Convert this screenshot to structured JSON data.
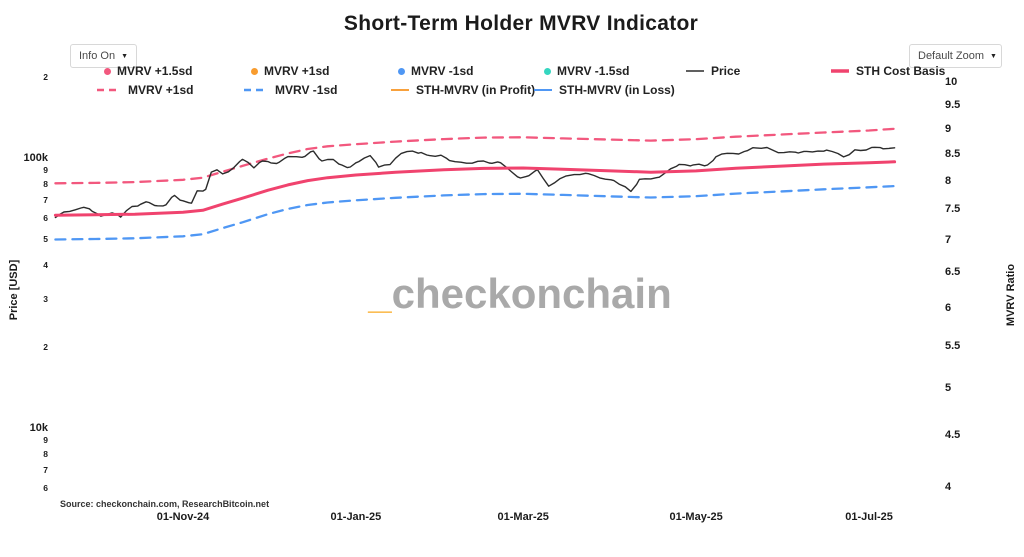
{
  "title": "Short-Term Holder MVRV Indicator",
  "controls": {
    "info_label": "Info On",
    "zoom_label": "Default Zoom"
  },
  "watermark": {
    "prefix": "_",
    "text": "checkonchain"
  },
  "source": "Source: checkonchain.com, ResearchBitcoin.net",
  "colors": {
    "pink": "#f0436e",
    "pink_dash": "#f2587e",
    "orange": "#f89c2f",
    "blue": "#4f97f4",
    "teal": "#35d6c0",
    "price_black": "#2c2c2c",
    "watermark_gray": "#a9a9a9",
    "watermark_orange": "#fbbd55"
  },
  "legend": {
    "items": [
      {
        "label": "MVRV +1.5sd",
        "swatch": "dot",
        "color": "#f2587e"
      },
      {
        "label": "MVRV +1sd",
        "swatch": "dot",
        "color": "#f89c2f"
      },
      {
        "label": "MVRV -1sd",
        "swatch": "dot",
        "color": "#4f97f4"
      },
      {
        "label": "MVRV -1.5sd",
        "swatch": "dot",
        "color": "#35d6c0"
      },
      {
        "label": "Price",
        "swatch": "line",
        "color": "#2c2c2c",
        "lw": 1.5
      },
      {
        "label": "STH Cost Basis",
        "swatch": "line",
        "color": "#f0436e",
        "lw": 3.5
      },
      {
        "label": "MVRV +1sd",
        "swatch": "dash",
        "color": "#f2587e",
        "lw": 2.5
      },
      {
        "label": "MVRV -1sd",
        "swatch": "dash",
        "color": "#4f97f4",
        "lw": 2.5
      },
      {
        "label": "STH-MVRV (in Profit)",
        "swatch": "line",
        "color": "#f8a13c",
        "lw": 2
      },
      {
        "label": "STH-MVRV (in Loss)",
        "swatch": "line",
        "color": "#4f97f4",
        "lw": 2
      }
    ]
  },
  "axes": {
    "left_title": "Price [USD]",
    "right_title": "MVRV Ratio",
    "left_ticks": [
      {
        "label": "2",
        "v": 200
      },
      {
        "label": "100k",
        "v": 100,
        "major": true
      },
      {
        "label": "9",
        "v": 90
      },
      {
        "label": "8",
        "v": 80
      },
      {
        "label": "7",
        "v": 70
      },
      {
        "label": "6",
        "v": 60
      },
      {
        "label": "5",
        "v": 50
      },
      {
        "label": "4",
        "v": 40
      },
      {
        "label": "3",
        "v": 30
      },
      {
        "label": "2",
        "v": 20
      },
      {
        "label": "10k",
        "v": 10,
        "major": true
      },
      {
        "label": "9",
        "v": 9
      },
      {
        "label": "8",
        "v": 8
      },
      {
        "label": "7",
        "v": 7
      },
      {
        "label": "6",
        "v": 6
      }
    ],
    "right_ticks": [
      {
        "label": "10",
        "v": 10
      },
      {
        "label": "9.5",
        "v": 9.5
      },
      {
        "label": "9",
        "v": 9
      },
      {
        "label": "8.5",
        "v": 8.5
      },
      {
        "label": "8",
        "v": 8
      },
      {
        "label": "7.5",
        "v": 7.5
      },
      {
        "label": "7",
        "v": 7
      },
      {
        "label": "6.5",
        "v": 6.5
      },
      {
        "label": "6",
        "v": 6
      },
      {
        "label": "5.5",
        "v": 5.5
      },
      {
        "label": "5",
        "v": 5
      },
      {
        "label": "4.5",
        "v": 4.5
      },
      {
        "label": "4",
        "v": 4
      }
    ],
    "x_ticks": [
      {
        "label": "01-Nov-24",
        "date": "2024-11-01"
      },
      {
        "label": "01-Jan-25",
        "date": "2025-01-01"
      },
      {
        "label": "01-Mar-25",
        "date": "2025-03-01"
      },
      {
        "label": "01-May-25",
        "date": "2025-05-01"
      },
      {
        "label": "01-Jul-25",
        "date": "2025-07-01"
      }
    ]
  },
  "chart_data": {
    "type": "line",
    "title": "Short-Term Holder MVRV Indicator",
    "x_axis": {
      "range": [
        "2024-09-17",
        "2025-07-10"
      ],
      "tick_labels": [
        "01-Nov-24",
        "01-Jan-25",
        "01-Mar-25",
        "01-May-25",
        "01-Jul-25"
      ]
    },
    "y_left": {
      "title": "Price [USD]",
      "scale": "log",
      "unit": "USD thousands"
    },
    "y_right": {
      "title": "MVRV Ratio",
      "scale": "log",
      "tick_range": [
        4,
        10
      ]
    },
    "legend_position": "top",
    "grid": false,
    "series": [
      {
        "name": "MVRV +1sd",
        "style": "dashed",
        "color": "#f2587e",
        "width": 2.3,
        "dash": "10 7",
        "unit": "kUSD",
        "points": [
          [
            "2024-09-17",
            80.6
          ],
          [
            "2024-10-01",
            80.9
          ],
          [
            "2024-10-15",
            81.4
          ],
          [
            "2024-11-01",
            83.0
          ],
          [
            "2024-11-08",
            84.5
          ],
          [
            "2024-11-15",
            89.0
          ],
          [
            "2024-11-22",
            93.5
          ],
          [
            "2024-12-01",
            99.5
          ],
          [
            "2024-12-08",
            104.0
          ],
          [
            "2024-12-15",
            108.0
          ],
          [
            "2024-12-22",
            110.5
          ],
          [
            "2025-01-01",
            112.5
          ],
          [
            "2025-01-15",
            115.0
          ],
          [
            "2025-02-01",
            117.5
          ],
          [
            "2025-02-15",
            119.0
          ],
          [
            "2025-03-01",
            119.3
          ],
          [
            "2025-03-15",
            118.2
          ],
          [
            "2025-04-01",
            117.0
          ],
          [
            "2025-04-15",
            116.0
          ],
          [
            "2025-05-01",
            117.4
          ],
          [
            "2025-05-15",
            119.9
          ],
          [
            "2025-06-01",
            122.3
          ],
          [
            "2025-06-15",
            124.3
          ],
          [
            "2025-07-01",
            126.4
          ],
          [
            "2025-07-10",
            128.3
          ]
        ]
      },
      {
        "name": "MVRV -1sd",
        "style": "dashed",
        "color": "#4f97f4",
        "width": 2.3,
        "dash": "10 7",
        "unit": "kUSD",
        "points": [
          [
            "2024-09-17",
            49.9
          ],
          [
            "2024-10-01",
            50.1
          ],
          [
            "2024-10-15",
            50.4
          ],
          [
            "2024-11-01",
            51.3
          ],
          [
            "2024-11-08",
            52.2
          ],
          [
            "2024-11-15",
            55.0
          ],
          [
            "2024-11-22",
            57.8
          ],
          [
            "2024-12-01",
            62.0
          ],
          [
            "2024-12-08",
            64.8
          ],
          [
            "2024-12-15",
            67.0
          ],
          [
            "2024-12-22",
            68.4
          ],
          [
            "2025-01-01",
            69.7
          ],
          [
            "2025-01-15",
            71.2
          ],
          [
            "2025-02-01",
            72.7
          ],
          [
            "2025-02-15",
            73.5
          ],
          [
            "2025-03-01",
            73.7
          ],
          [
            "2025-03-15",
            73.0
          ],
          [
            "2025-04-01",
            72.1
          ],
          [
            "2025-04-15",
            71.4
          ],
          [
            "2025-05-01",
            72.2
          ],
          [
            "2025-05-15",
            73.8
          ],
          [
            "2025-06-01",
            75.3
          ],
          [
            "2025-06-15",
            76.6
          ],
          [
            "2025-07-01",
            77.9
          ],
          [
            "2025-07-10",
            78.7
          ]
        ]
      },
      {
        "name": "Price",
        "style": "solid",
        "color": "#2c2c2c",
        "width": 1.4,
        "jagged": true,
        "unit": "kUSD",
        "points": [
          [
            "2024-09-17",
            60.2
          ],
          [
            "2024-09-20",
            63.1
          ],
          [
            "2024-09-24",
            64.3
          ],
          [
            "2024-09-27",
            65.7
          ],
          [
            "2024-09-30",
            63.4
          ],
          [
            "2024-10-03",
            60.9
          ],
          [
            "2024-10-07",
            62.6
          ],
          [
            "2024-10-10",
            60.4
          ],
          [
            "2024-10-14",
            66.1
          ],
          [
            "2024-10-17",
            67.4
          ],
          [
            "2024-10-20",
            68.4
          ],
          [
            "2024-10-23",
            66.5
          ],
          [
            "2024-10-26",
            67.1
          ],
          [
            "2024-10-29",
            72.7
          ],
          [
            "2024-11-01",
            69.4
          ],
          [
            "2024-11-04",
            68.0
          ],
          [
            "2024-11-06",
            75.6
          ],
          [
            "2024-11-09",
            76.5
          ],
          [
            "2024-11-11",
            88.7
          ],
          [
            "2024-11-13",
            90.4
          ],
          [
            "2024-11-15",
            87.3
          ],
          [
            "2024-11-19",
            92.3
          ],
          [
            "2024-11-22",
            98.9
          ],
          [
            "2024-11-26",
            91.9
          ],
          [
            "2024-11-29",
            97.5
          ],
          [
            "2024-12-02",
            95.9
          ],
          [
            "2024-12-05",
            96.6
          ],
          [
            "2024-12-08",
            101.2
          ],
          [
            "2024-12-11",
            101.1
          ],
          [
            "2024-12-14",
            101.4
          ],
          [
            "2024-12-17",
            106.1
          ],
          [
            "2024-12-20",
            97.5
          ],
          [
            "2024-12-24",
            98.7
          ],
          [
            "2024-12-27",
            94.2
          ],
          [
            "2024-12-30",
            92.6
          ],
          [
            "2025-01-02",
            97.0
          ],
          [
            "2025-01-06",
            102.1
          ],
          [
            "2025-01-09",
            92.5
          ],
          [
            "2025-01-13",
            94.5
          ],
          [
            "2025-01-17",
            104.0
          ],
          [
            "2025-01-21",
            106.1
          ],
          [
            "2025-01-24",
            104.8
          ],
          [
            "2025-01-27",
            102.1
          ],
          [
            "2025-01-31",
            102.4
          ],
          [
            "2025-02-03",
            97.8
          ],
          [
            "2025-02-07",
            96.5
          ],
          [
            "2025-02-11",
            95.7
          ],
          [
            "2025-02-15",
            97.5
          ],
          [
            "2025-02-18",
            95.6
          ],
          [
            "2025-02-21",
            96.1
          ],
          [
            "2025-02-25",
            88.7
          ],
          [
            "2025-02-28",
            84.3
          ],
          [
            "2025-03-03",
            86.0
          ],
          [
            "2025-03-06",
            90.6
          ],
          [
            "2025-03-10",
            78.6
          ],
          [
            "2025-03-14",
            83.9
          ],
          [
            "2025-03-19",
            86.8
          ],
          [
            "2025-03-24",
            87.5
          ],
          [
            "2025-03-28",
            84.4
          ],
          [
            "2025-04-02",
            82.5
          ],
          [
            "2025-04-06",
            78.2
          ],
          [
            "2025-04-08",
            75.2
          ],
          [
            "2025-04-11",
            83.4
          ],
          [
            "2025-04-15",
            83.7
          ],
          [
            "2025-04-18",
            84.9
          ],
          [
            "2025-04-22",
            91.2
          ],
          [
            "2025-04-25",
            94.7
          ],
          [
            "2025-04-30",
            94.3
          ],
          [
            "2025-05-05",
            94.2
          ],
          [
            "2025-05-08",
            101.1
          ],
          [
            "2025-05-12",
            104.1
          ],
          [
            "2025-05-16",
            103.5
          ],
          [
            "2025-05-19",
            106.4
          ],
          [
            "2025-05-22",
            109.0
          ],
          [
            "2025-05-26",
            109.4
          ],
          [
            "2025-05-30",
            104.6
          ],
          [
            "2025-06-03",
            105.4
          ],
          [
            "2025-06-06",
            104.4
          ],
          [
            "2025-06-09",
            105.8
          ],
          [
            "2025-06-13",
            106.1
          ],
          [
            "2025-06-16",
            107.0
          ],
          [
            "2025-06-20",
            103.9
          ],
          [
            "2025-06-22",
            100.9
          ],
          [
            "2025-06-26",
            107.2
          ],
          [
            "2025-06-30",
            107.1
          ],
          [
            "2025-07-03",
            109.6
          ],
          [
            "2025-07-06",
            108.2
          ],
          [
            "2025-07-10",
            109.1
          ]
        ]
      },
      {
        "name": "STH Cost Basis",
        "style": "solid",
        "color": "#f0436e",
        "width": 3,
        "unit": "kUSD",
        "points": [
          [
            "2024-09-17",
            61.4
          ],
          [
            "2024-10-01",
            61.6
          ],
          [
            "2024-10-15",
            61.9
          ],
          [
            "2024-11-01",
            63.0
          ],
          [
            "2024-11-08",
            64.0
          ],
          [
            "2024-11-15",
            67.5
          ],
          [
            "2024-11-22",
            71.0
          ],
          [
            "2024-12-01",
            76.0
          ],
          [
            "2024-12-08",
            79.5
          ],
          [
            "2024-12-15",
            82.5
          ],
          [
            "2024-12-22",
            84.5
          ],
          [
            "2025-01-01",
            86.5
          ],
          [
            "2025-01-15",
            88.5
          ],
          [
            "2025-02-01",
            90.5
          ],
          [
            "2025-02-15",
            91.5
          ],
          [
            "2025-03-01",
            91.8
          ],
          [
            "2025-03-15",
            90.8
          ],
          [
            "2025-04-01",
            89.6
          ],
          [
            "2025-04-15",
            88.6
          ],
          [
            "2025-05-01",
            89.6
          ],
          [
            "2025-05-15",
            91.6
          ],
          [
            "2025-06-01",
            93.4
          ],
          [
            "2025-06-15",
            94.9
          ],
          [
            "2025-07-01",
            96.1
          ],
          [
            "2025-07-10",
            96.8
          ]
        ]
      }
    ]
  }
}
